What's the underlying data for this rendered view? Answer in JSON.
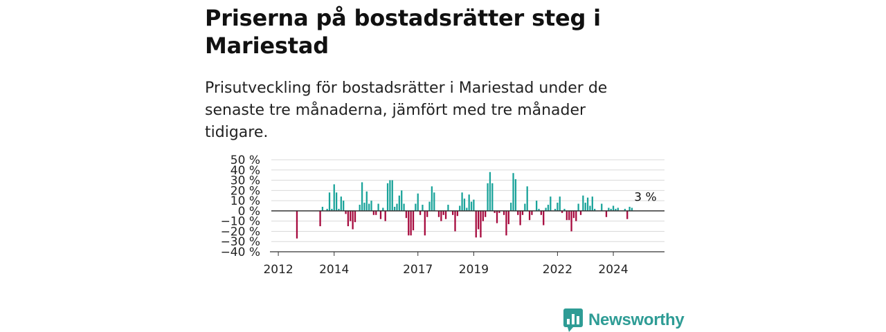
{
  "header": {
    "title": "Priserna på bostadsrätter steg i Mariestad",
    "subtitle": "Prisutveckling för bostadsrätter i Mariestad under de senaste tre månaderna, jämfört med tre månader tidigare."
  },
  "brand": {
    "name": "Newsworthy",
    "color": "#2e9c95",
    "icon": "newsworthy-logo-icon"
  },
  "chart_data": {
    "type": "bar",
    "colors": {
      "positive": "#1aa39a",
      "negative": "#a6093d",
      "grid": "#d9d9d9",
      "zero": "#333333"
    },
    "ylim": [
      -40,
      50
    ],
    "y_ticks": [
      {
        "value": 50,
        "label": "50 %"
      },
      {
        "value": 40,
        "label": "40 %"
      },
      {
        "value": 30,
        "label": "30 %"
      },
      {
        "value": 20,
        "label": "20 %"
      },
      {
        "value": 10,
        "label": "10 %"
      },
      {
        "value": 0,
        "label": "0 %"
      },
      {
        "value": -10,
        "label": "−10 %"
      },
      {
        "value": -20,
        "label": "−20 %"
      },
      {
        "value": -30,
        "label": "−30 %"
      },
      {
        "value": -40,
        "label": "−40 %"
      }
    ],
    "x_ticks": [
      {
        "value": "2012-01",
        "label": "2012"
      },
      {
        "value": "2014-01",
        "label": "2014"
      },
      {
        "value": "2017-01",
        "label": "2017"
      },
      {
        "value": "2019-01",
        "label": "2019"
      },
      {
        "value": "2022-01",
        "label": "2022"
      },
      {
        "value": "2024-01",
        "label": "2024"
      }
    ],
    "annotation": {
      "label": "3 %",
      "value": 3,
      "x": "2025-04"
    },
    "data": [
      [
        "2012-09",
        -27
      ],
      [
        "2013-07",
        -15
      ],
      [
        "2013-08",
        4
      ],
      [
        "2013-10",
        2
      ],
      [
        "2013-11",
        18
      ],
      [
        "2013-12",
        2
      ],
      [
        "2014-01",
        26
      ],
      [
        "2014-02",
        18
      ],
      [
        "2014-03",
        2
      ],
      [
        "2014-04",
        14
      ],
      [
        "2014-05",
        10
      ],
      [
        "2014-06",
        -3
      ],
      [
        "2014-07",
        -15
      ],
      [
        "2014-08",
        -10
      ],
      [
        "2014-09",
        -18
      ],
      [
        "2014-10",
        -11
      ],
      [
        "2014-12",
        6
      ],
      [
        "2015-01",
        28
      ],
      [
        "2015-02",
        8
      ],
      [
        "2015-03",
        19
      ],
      [
        "2015-04",
        7
      ],
      [
        "2015-05",
        10
      ],
      [
        "2015-06",
        -4
      ],
      [
        "2015-07",
        -4
      ],
      [
        "2015-08",
        7
      ],
      [
        "2015-09",
        -8
      ],
      [
        "2015-10",
        3
      ],
      [
        "2015-11",
        -10
      ],
      [
        "2015-12",
        27
      ],
      [
        "2016-01",
        30
      ],
      [
        "2016-02",
        30
      ],
      [
        "2016-03",
        4
      ],
      [
        "2016-04",
        7
      ],
      [
        "2016-05",
        15
      ],
      [
        "2016-06",
        20
      ],
      [
        "2016-07",
        7
      ],
      [
        "2016-08",
        -7
      ],
      [
        "2016-09",
        -24
      ],
      [
        "2016-10",
        -24
      ],
      [
        "2016-11",
        -19
      ],
      [
        "2016-12",
        7
      ],
      [
        "2017-01",
        17
      ],
      [
        "2017-02",
        -4
      ],
      [
        "2017-03",
        6
      ],
      [
        "2017-04",
        -24
      ],
      [
        "2017-05",
        -6
      ],
      [
        "2017-06",
        9
      ],
      [
        "2017-07",
        24
      ],
      [
        "2017-08",
        18
      ],
      [
        "2017-10",
        -6
      ],
      [
        "2017-11",
        -10
      ],
      [
        "2017-12",
        -4
      ],
      [
        "2018-01",
        -8
      ],
      [
        "2018-02",
        6
      ],
      [
        "2018-04",
        -4
      ],
      [
        "2018-05",
        -20
      ],
      [
        "2018-06",
        -5
      ],
      [
        "2018-07",
        5
      ],
      [
        "2018-08",
        18
      ],
      [
        "2018-09",
        12
      ],
      [
        "2018-10",
        3
      ],
      [
        "2018-11",
        16
      ],
      [
        "2018-12",
        9
      ],
      [
        "2019-01",
        11
      ],
      [
        "2019-02",
        -26
      ],
      [
        "2019-03",
        -18
      ],
      [
        "2019-04",
        -26
      ],
      [
        "2019-05",
        -10
      ],
      [
        "2019-06",
        -6
      ],
      [
        "2019-07",
        27
      ],
      [
        "2019-08",
        38
      ],
      [
        "2019-09",
        27
      ],
      [
        "2019-10",
        -2
      ],
      [
        "2019-11",
        -12
      ],
      [
        "2019-12",
        -2
      ],
      [
        "2020-02",
        -4
      ],
      [
        "2020-03",
        -24
      ],
      [
        "2020-04",
        -13
      ],
      [
        "2020-05",
        8
      ],
      [
        "2020-06",
        37
      ],
      [
        "2020-07",
        31
      ],
      [
        "2020-08",
        -4
      ],
      [
        "2020-09",
        -14
      ],
      [
        "2020-10",
        -4
      ],
      [
        "2020-11",
        7
      ],
      [
        "2020-12",
        24
      ],
      [
        "2021-01",
        -9
      ],
      [
        "2021-02",
        -4
      ],
      [
        "2021-04",
        10
      ],
      [
        "2021-05",
        2
      ],
      [
        "2021-06",
        -4
      ],
      [
        "2021-07",
        -14
      ],
      [
        "2021-08",
        3
      ],
      [
        "2021-09",
        6
      ],
      [
        "2021-10",
        14
      ],
      [
        "2021-12",
        2
      ],
      [
        "2022-01",
        8
      ],
      [
        "2022-02",
        14
      ],
      [
        "2022-03",
        -2
      ],
      [
        "2022-04",
        2
      ],
      [
        "2022-05",
        -9
      ],
      [
        "2022-06",
        -9
      ],
      [
        "2022-07",
        -20
      ],
      [
        "2022-08",
        -7
      ],
      [
        "2022-09",
        -10
      ],
      [
        "2022-10",
        7
      ],
      [
        "2022-11",
        -4
      ],
      [
        "2022-12",
        15
      ],
      [
        "2023-01",
        8
      ],
      [
        "2023-02",
        13
      ],
      [
        "2023-03",
        5
      ],
      [
        "2023-04",
        14
      ],
      [
        "2023-05",
        2
      ],
      [
        "2023-08",
        7
      ],
      [
        "2023-10",
        -6
      ],
      [
        "2023-11",
        3
      ],
      [
        "2023-12",
        2
      ],
      [
        "2024-01",
        5
      ],
      [
        "2024-02",
        2
      ],
      [
        "2024-03",
        3
      ],
      [
        "2024-06",
        2
      ],
      [
        "2024-07",
        -8
      ],
      [
        "2024-08",
        4
      ],
      [
        "2024-09",
        3
      ]
    ]
  }
}
